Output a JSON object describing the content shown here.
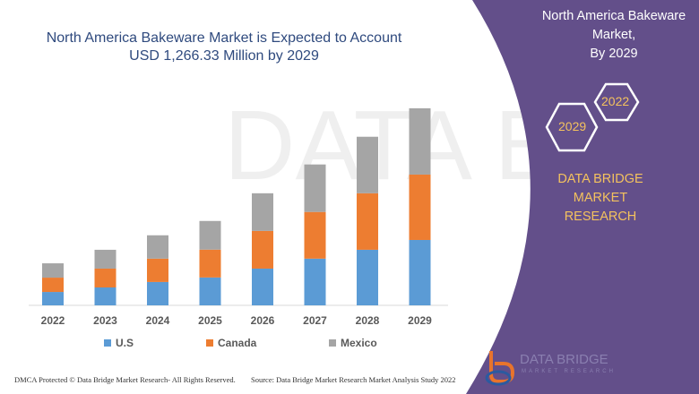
{
  "header": {
    "title_line1": "North America Bakeware Market is Expected to Account",
    "title_line2": "USD 1,266.33 Million by 2029"
  },
  "side_panel": {
    "title_line1": "North America Bakeware Market,",
    "title_line2": "By 2029",
    "hex_years": [
      "2022",
      "2029"
    ],
    "brand_line1": "DATA BRIDGE MARKET",
    "brand_line2": "RESEARCH",
    "logo_text": "DATA BRIDGE",
    "logo_sub": "MARKET RESEARCH",
    "panel_color": "#634f8a",
    "accent_color": "#f4c25e"
  },
  "footer": {
    "copyright": "DMCA Protected © Data Bridge Market Research- All Rights Reserved.",
    "source": "Source: Data Bridge Market Research Market Analysis Study 2022"
  },
  "chart_data": {
    "type": "bar",
    "stacked": true,
    "title": "North America Bakeware Market is Expected to Account USD 1,266.33 Million by 2029",
    "xlabel": "",
    "ylabel": "",
    "categories": [
      "2022",
      "2023",
      "2024",
      "2025",
      "2026",
      "2027",
      "2028",
      "2029"
    ],
    "series": [
      {
        "name": "U.S",
        "color": "#5b9bd5",
        "values": [
          86,
          115,
          150,
          179,
          236,
          300,
          357,
          420
        ]
      },
      {
        "name": "Canada",
        "color": "#ed7d31",
        "values": [
          92,
          121,
          150,
          179,
          242,
          300,
          363,
          420
        ]
      },
      {
        "name": "Mexico",
        "color": "#a5a5a5",
        "values": [
          92,
          121,
          150,
          184,
          242,
          305,
          363,
          426
        ]
      }
    ],
    "ylim": [
      0,
      1300
    ],
    "grid": false,
    "y_axis_visible": false,
    "legend": "bottom"
  }
}
